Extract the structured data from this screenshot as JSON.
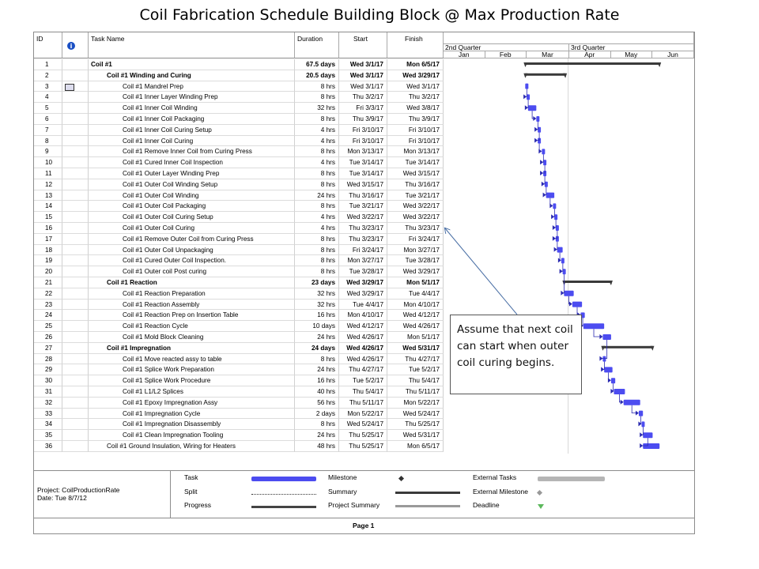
{
  "slide_title": "Coil Fabrication Schedule Building Block @ Max Production Rate",
  "columns": {
    "id": "ID",
    "task_name": "Task Name",
    "duration": "Duration",
    "start": "Start",
    "finish": "Finish",
    "info_icon": "info-icon"
  },
  "timescale": {
    "quarters": [
      "2nd Quarter",
      "3rd Quarter"
    ],
    "months": [
      "Jan",
      "Feb",
      "Mar",
      "Apr",
      "May",
      "Jun"
    ]
  },
  "tasks": [
    {
      "id": "1",
      "name": "Coil #1",
      "duration": "67.5 days",
      "start": "Wed 3/1/17",
      "finish": "Mon 6/5/17",
      "level": 0,
      "summary": true
    },
    {
      "id": "2",
      "name": "Coil #1 Winding and Curing",
      "duration": "20.5 days",
      "start": "Wed 3/1/17",
      "finish": "Wed 3/29/17",
      "level": 1,
      "summary": true
    },
    {
      "id": "3",
      "name": "Coil #1 Mandrel Prep",
      "duration": "8 hrs",
      "start": "Wed 3/1/17",
      "finish": "Wed 3/1/17",
      "level": 2,
      "indicator": true
    },
    {
      "id": "4",
      "name": "Coil #1 Inner Layer Winding Prep",
      "duration": "8 hrs",
      "start": "Thu 3/2/17",
      "finish": "Thu 3/2/17",
      "level": 2
    },
    {
      "id": "5",
      "name": "Coil #1 Inner Coil Winding",
      "duration": "32 hrs",
      "start": "Fri 3/3/17",
      "finish": "Wed 3/8/17",
      "level": 2
    },
    {
      "id": "6",
      "name": "Coil #1 Inner Coil Packaging",
      "duration": "8 hrs",
      "start": "Thu 3/9/17",
      "finish": "Thu 3/9/17",
      "level": 2
    },
    {
      "id": "7",
      "name": "Coil #1 Inner Coil Curing Setup",
      "duration": "4 hrs",
      "start": "Fri 3/10/17",
      "finish": "Fri 3/10/17",
      "level": 2
    },
    {
      "id": "8",
      "name": "Coil #1 Inner Coil Curing",
      "duration": "4 hrs",
      "start": "Fri 3/10/17",
      "finish": "Fri 3/10/17",
      "level": 2
    },
    {
      "id": "9",
      "name": "Coil #1 Remove Inner Coil from Curing Press",
      "duration": "8 hrs",
      "start": "Mon 3/13/17",
      "finish": "Mon 3/13/17",
      "level": 2
    },
    {
      "id": "10",
      "name": "Coil #1 Cured Inner Coil Inspection",
      "duration": "4 hrs",
      "start": "Tue 3/14/17",
      "finish": "Tue 3/14/17",
      "level": 2
    },
    {
      "id": "11",
      "name": "Coil #1 Outer Layer Winding Prep",
      "duration": "8 hrs",
      "start": "Tue 3/14/17",
      "finish": "Wed 3/15/17",
      "level": 2
    },
    {
      "id": "12",
      "name": "Coil #1 Outer Coil Winding Setup",
      "duration": "8 hrs",
      "start": "Wed 3/15/17",
      "finish": "Thu 3/16/17",
      "level": 2
    },
    {
      "id": "13",
      "name": "Coil #1 Outer Coil Winding",
      "duration": "24 hrs",
      "start": "Thu 3/16/17",
      "finish": "Tue 3/21/17",
      "level": 2
    },
    {
      "id": "14",
      "name": "Coil #1 Outer Coil Packaging",
      "duration": "8 hrs",
      "start": "Tue 3/21/17",
      "finish": "Wed 3/22/17",
      "level": 2
    },
    {
      "id": "15",
      "name": "Coil #1 Outer Coil Curing Setup",
      "duration": "4 hrs",
      "start": "Wed 3/22/17",
      "finish": "Wed 3/22/17",
      "level": 2
    },
    {
      "id": "16",
      "name": "Coil #1 Outer Coil Curing",
      "duration": "4 hrs",
      "start": "Thu 3/23/17",
      "finish": "Thu 3/23/17",
      "level": 2
    },
    {
      "id": "17",
      "name": "Coil #1 Remove Outer Coil from Curing Press",
      "duration": "8 hrs",
      "start": "Thu 3/23/17",
      "finish": "Fri 3/24/17",
      "level": 2
    },
    {
      "id": "18",
      "name": "Coil #1 Outer Coil Unpackaging",
      "duration": "8 hrs",
      "start": "Fri 3/24/17",
      "finish": "Mon 3/27/17",
      "level": 2
    },
    {
      "id": "19",
      "name": "Coil #1 Cured Outer Coil Inspection.",
      "duration": "8 hrs",
      "start": "Mon 3/27/17",
      "finish": "Tue 3/28/17",
      "level": 2
    },
    {
      "id": "20",
      "name": "Coil #1 Outer coil Post curing",
      "duration": "8 hrs",
      "start": "Tue 3/28/17",
      "finish": "Wed 3/29/17",
      "level": 2
    },
    {
      "id": "21",
      "name": "Coil #1 Reaction",
      "duration": "23 days",
      "start": "Wed 3/29/17",
      "finish": "Mon 5/1/17",
      "level": 1,
      "summary": true
    },
    {
      "id": "22",
      "name": "Coil #1 Reaction Preparation",
      "duration": "32 hrs",
      "start": "Wed 3/29/17",
      "finish": "Tue 4/4/17",
      "level": 2
    },
    {
      "id": "23",
      "name": "Coil #1 Reaction Assembly",
      "duration": "32 hrs",
      "start": "Tue 4/4/17",
      "finish": "Mon 4/10/17",
      "level": 2
    },
    {
      "id": "24",
      "name": "Coil #1 Reaction Prep on Insertion Table",
      "duration": "16 hrs",
      "start": "Mon 4/10/17",
      "finish": "Wed 4/12/17",
      "level": 2
    },
    {
      "id": "25",
      "name": "Coil #1 Reaction Cycle",
      "duration": "10 days",
      "start": "Wed 4/12/17",
      "finish": "Wed 4/26/17",
      "level": 2
    },
    {
      "id": "26",
      "name": "Coil #1 Mold Block Cleaning",
      "duration": "24 hrs",
      "start": "Wed 4/26/17",
      "finish": "Mon 5/1/17",
      "level": 2
    },
    {
      "id": "27",
      "name": "Coil #1 Impregnation",
      "duration": "24 days",
      "start": "Wed 4/26/17",
      "finish": "Wed 5/31/17",
      "level": 1,
      "summary": true
    },
    {
      "id": "28",
      "name": "Coil #1 Move reacted assy to table",
      "duration": "8 hrs",
      "start": "Wed 4/26/17",
      "finish": "Thu 4/27/17",
      "level": 2
    },
    {
      "id": "29",
      "name": "Coil #1 Splice Work Preparation",
      "duration": "24 hrs",
      "start": "Thu 4/27/17",
      "finish": "Tue 5/2/17",
      "level": 2
    },
    {
      "id": "30",
      "name": "Coil #1 Splice Work Procedure",
      "duration": "16 hrs",
      "start": "Tue 5/2/17",
      "finish": "Thu 5/4/17",
      "level": 2
    },
    {
      "id": "31",
      "name": "Coil #1 L1/L2 Splices",
      "duration": "40 hrs",
      "start": "Thu 5/4/17",
      "finish": "Thu 5/11/17",
      "level": 2
    },
    {
      "id": "32",
      "name": "Coil #1 Epoxy Impregnation Assy",
      "duration": "56 hrs",
      "start": "Thu 5/11/17",
      "finish": "Mon 5/22/17",
      "level": 2
    },
    {
      "id": "33",
      "name": "Coil #1 Impregnation Cycle",
      "duration": "2 days",
      "start": "Mon 5/22/17",
      "finish": "Wed 5/24/17",
      "level": 2
    },
    {
      "id": "34",
      "name": "Coil #1 Impregnation Disassembly",
      "duration": "8 hrs",
      "start": "Wed 5/24/17",
      "finish": "Thu 5/25/17",
      "level": 2
    },
    {
      "id": "35",
      "name": "Coil #1 Clean Impregnation Tooling",
      "duration": "24 hrs",
      "start": "Thu 5/25/17",
      "finish": "Wed 5/31/17",
      "level": 2
    },
    {
      "id": "36",
      "name": "Coil #1 Ground Insulation, Wiring for Heaters",
      "duration": "48 hrs",
      "start": "Thu 5/25/17",
      "finish": "Mon 6/5/17",
      "level": 1
    }
  ],
  "annotation": "Assume that next coil can start when outer coil curing begins.",
  "footer": {
    "project": "Project: CoilProductionRate",
    "date": "Date: Tue 8/7/12",
    "legend": [
      {
        "label": "Task",
        "kind": "task"
      },
      {
        "label": "Split",
        "kind": "split"
      },
      {
        "label": "Progress",
        "kind": "progress"
      },
      {
        "label": "Milestone",
        "kind": "milestone"
      },
      {
        "label": "Summary",
        "kind": "summary"
      },
      {
        "label": "Project Summary",
        "kind": "project-summary"
      },
      {
        "label": "External Tasks",
        "kind": "external-tasks"
      },
      {
        "label": "External Milestone",
        "kind": "external-milestone"
      },
      {
        "label": "Deadline",
        "kind": "deadline"
      }
    ],
    "page": "Page 1"
  },
  "colors": {
    "task_bar": "#4c4cf0",
    "summary_bar": "#3a3a3a",
    "link": "#2a2ab0",
    "grid": "#d0d0d0"
  }
}
